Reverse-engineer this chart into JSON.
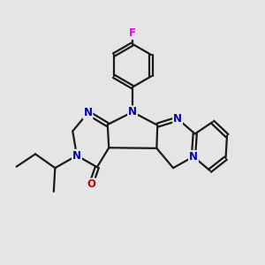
{
  "bg_color": "#e5e5e5",
  "bond_color": "#1a1a1a",
  "N_color": "#0000bb",
  "O_color": "#cc0000",
  "F_color": "#ee00ee",
  "line_width": 1.6,
  "figsize": [
    3.0,
    3.0
  ],
  "dpi": 100,
  "xlim": [
    0,
    10
  ],
  "ylim": [
    0,
    10
  ]
}
